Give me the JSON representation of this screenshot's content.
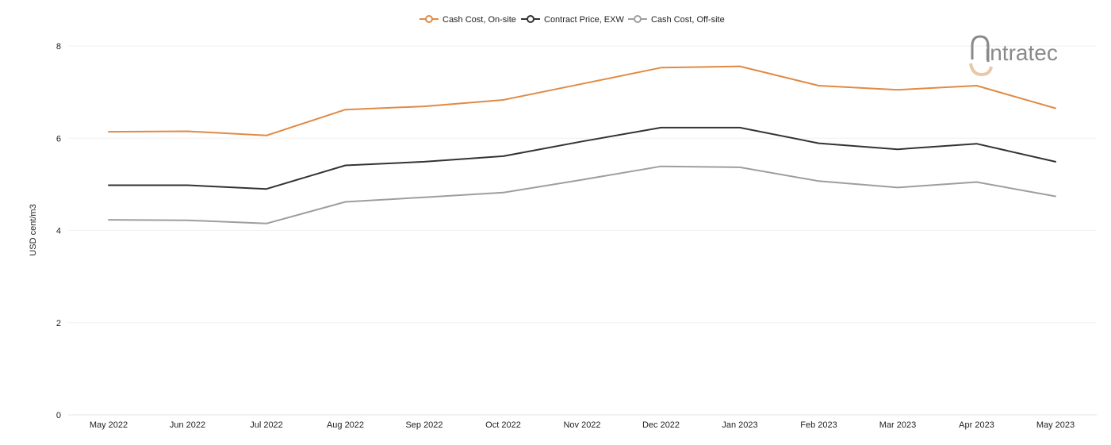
{
  "chart_data": {
    "type": "line",
    "categories": [
      "May 2022",
      "Jun 2022",
      "Jul 2022",
      "Aug 2022",
      "Sep 2022",
      "Oct 2022",
      "Nov 2022",
      "Dec 2022",
      "Jan 2023",
      "Feb 2023",
      "Mar 2023",
      "Apr 2023",
      "May 2023"
    ],
    "series": [
      {
        "name": "Cash Cost, On-site",
        "color": "#e08a45",
        "values": [
          6.14,
          6.15,
          6.06,
          6.62,
          6.69,
          6.83,
          7.18,
          7.53,
          7.56,
          7.14,
          7.05,
          7.14,
          6.65
        ]
      },
      {
        "name": "Contract Price, EXW",
        "color": "#333333",
        "values": [
          4.98,
          4.98,
          4.9,
          5.41,
          5.49,
          5.61,
          5.93,
          6.23,
          6.23,
          5.89,
          5.76,
          5.88,
          5.49
        ]
      },
      {
        "name": "Cash Cost, Off-site",
        "color": "#9e9e9e",
        "values": [
          4.23,
          4.22,
          4.15,
          4.62,
          4.72,
          4.82,
          5.1,
          5.39,
          5.37,
          5.07,
          4.93,
          5.05,
          4.74
        ]
      }
    ],
    "yticks": [
      "0",
      "2",
      "4",
      "6",
      "8"
    ],
    "ylim": [
      0,
      8
    ],
    "ylabel": "USD cent/m3",
    "xlabel": "",
    "title": "",
    "grid": true,
    "legend_position": "top-center"
  },
  "logo": {
    "text": "intratec",
    "color": "#8a8a8a",
    "accent": "#e8c8a8"
  }
}
